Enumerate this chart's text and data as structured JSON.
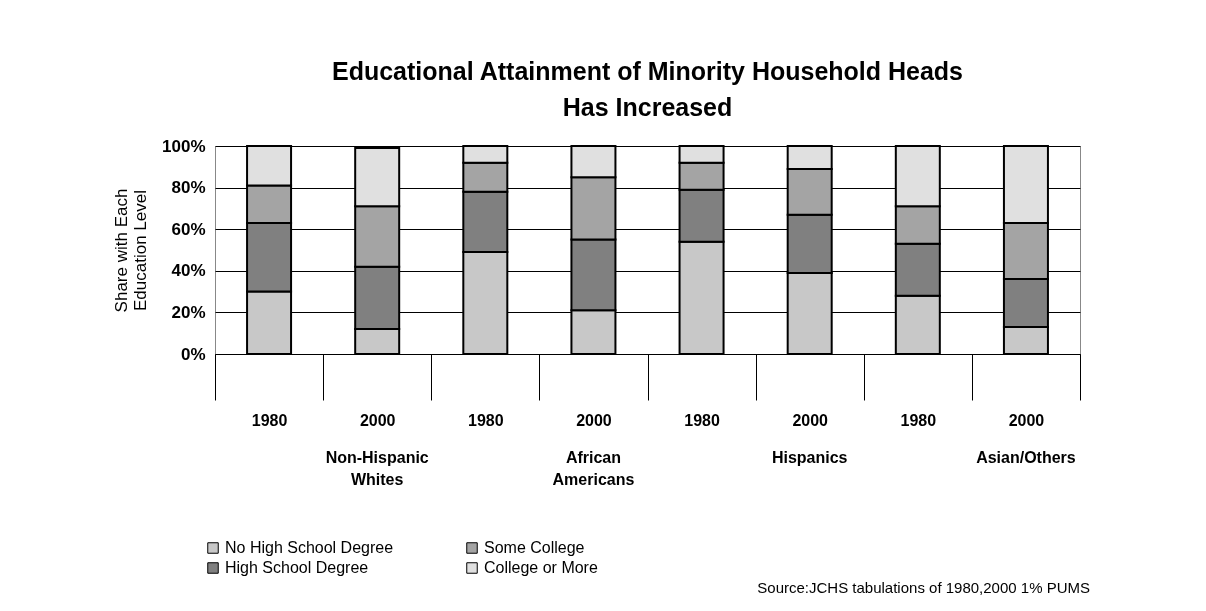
{
  "chart_data": {
    "type": "bar",
    "stacked": true,
    "title": "Educational Attainment of Minority Household Heads Has Increased",
    "ylabel": "Share with Each Education Level",
    "categories": [
      "1980",
      "2000",
      "1980",
      "2000",
      "1980",
      "2000",
      "1980",
      "2000"
    ],
    "series": [
      {
        "name": "No High School Degree",
        "color": "#c8c8c8",
        "values": [
          30,
          12,
          49,
          21,
          54,
          39,
          28,
          13
        ]
      },
      {
        "name": "High School Degree",
        "color": "#808080",
        "values": [
          33,
          30,
          29,
          34,
          25,
          28,
          25,
          23
        ]
      },
      {
        "name": "Some College",
        "color": "#a4a4a4",
        "values": [
          18,
          29,
          14,
          30,
          13,
          22,
          18,
          27
        ]
      },
      {
        "name": "College or More",
        "color": "#e0e0e0",
        "values": [
          19,
          28,
          8,
          15,
          8,
          11,
          29,
          37
        ]
      }
    ],
    "ylim": [
      0,
      100
    ],
    "yticks": [
      {
        "value": 0,
        "label": "0%"
      },
      {
        "value": 20,
        "label": "20%"
      },
      {
        "value": 40,
        "label": "40%"
      },
      {
        "value": 60,
        "label": "60%"
      },
      {
        "value": 80,
        "label": "80%"
      },
      {
        "value": 100,
        "label": "100%"
      }
    ],
    "grid": "y",
    "legend": "bottom",
    "annotations": [
      "Non-Hispanic Whites",
      "African Americans",
      "Hispanics",
      "Asian/Others",
      "Source:JCHS tabulations of 1980,2000 1% PUMS"
    ]
  }
}
